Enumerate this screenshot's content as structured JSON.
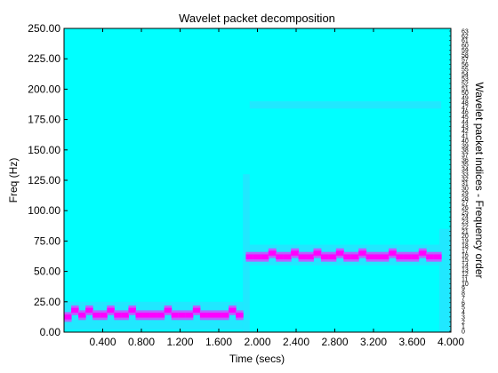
{
  "chart_data": {
    "type": "heatmap",
    "title": "Wavelet packet decomposition",
    "xlabel": "Time (secs)",
    "ylabel": "Freq (Hz)",
    "right_ylabel": "Wavelet packet indices - Frequency order",
    "xlim": [
      0.0,
      4.0
    ],
    "ylim": [
      0.0,
      250.0
    ],
    "x_ticks": [
      "0.400",
      "0.800",
      "1.200",
      "1.600",
      "2.000",
      "2.400",
      "2.800",
      "3.200",
      "3.600",
      "4.000"
    ],
    "y_ticks": [
      "0.00",
      "25.00",
      "50.00",
      "75.00",
      "100.00",
      "125.00",
      "150.00",
      "175.00",
      "200.00",
      "225.00",
      "250.00"
    ],
    "colors": {
      "background": "#00ffff",
      "strong": "#ff00ff",
      "medium": "#b860ff",
      "weak": "#3fd0ff",
      "faint": "#20e8ff"
    },
    "ridges": [
      {
        "note": "low-frequency tone before 1.85 s",
        "t_start": 0.0,
        "t_end": 1.85,
        "freqs": [
          12.5,
          18.0,
          14.0,
          18.0,
          14.0,
          14.0,
          18.0,
          14.0,
          14.0,
          18.0,
          14.0,
          14.0,
          14.0,
          14.0,
          18.0,
          14.0,
          14.0,
          14.0,
          18.0,
          14.0,
          14.0,
          14.0,
          14.0,
          18.0,
          14.0
        ]
      },
      {
        "note": "higher-frequency tone after 1.88 s",
        "t_start": 1.88,
        "t_end": 3.9,
        "freqs": [
          62.0,
          62.0,
          62.0,
          65.0,
          62.0,
          62.0,
          65.0,
          62.0,
          62.0,
          65.0,
          62.0,
          62.0,
          65.0,
          62.0,
          62.0,
          65.0,
          62.0,
          62.0,
          62.0,
          65.0,
          62.0,
          62.0,
          62.0,
          65.0,
          62.0,
          62.0
        ]
      }
    ],
    "right_tick_labels": [
      "63",
      "62",
      "61",
      "60",
      "59",
      "58",
      "57",
      "56",
      "55",
      "54",
      "53",
      "52",
      "51",
      "50",
      "49",
      "48",
      "47",
      "46",
      "45",
      "44",
      "43",
      "42",
      "41",
      "40",
      "39",
      "38",
      "37",
      "36",
      "35",
      "34",
      "33",
      "32",
      "31",
      "30",
      "29",
      "28",
      "27",
      "26",
      "25",
      "24",
      "23",
      "22",
      "21",
      "20",
      "19",
      "18",
      "17",
      "16",
      "15",
      "14",
      "13",
      "12",
      "11",
      "10",
      "9",
      "8",
      "7",
      "6",
      "5",
      "4",
      "3",
      "2",
      "1",
      "0"
    ]
  }
}
